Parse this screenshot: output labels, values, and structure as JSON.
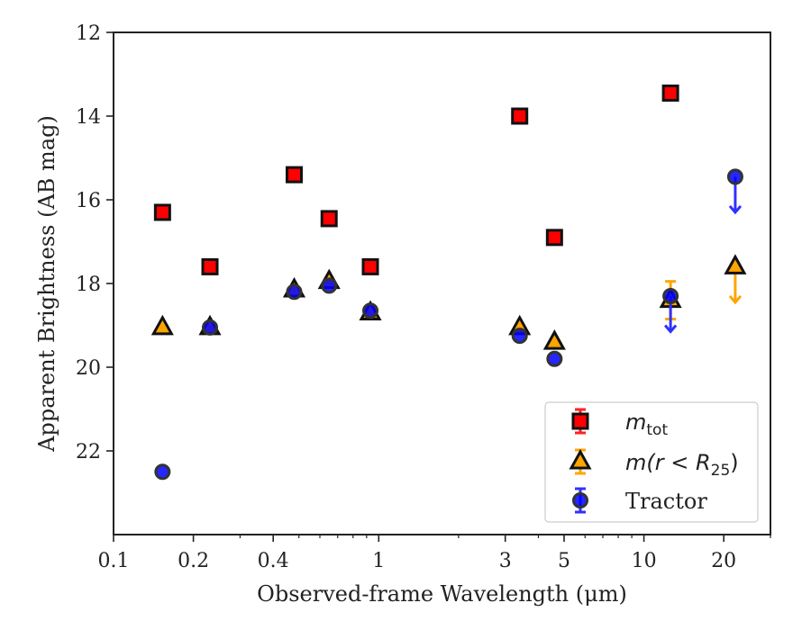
{
  "chart_data": {
    "type": "scatter",
    "xlabel": "Observed-frame Wavelength (μm)",
    "ylabel": "Apparent Brightness (AB mag)",
    "x_scale": "log",
    "xlim": [
      0.1,
      30
    ],
    "ylim": [
      24,
      12
    ],
    "y_inverted": true,
    "x_ticks": [
      0.1,
      0.2,
      0.4,
      1,
      3,
      5,
      10,
      20
    ],
    "x_tick_labels": [
      "0.1",
      "0.2",
      "0.4",
      "1",
      "3",
      "5",
      "10",
      "20"
    ],
    "y_ticks": [
      12,
      14,
      16,
      18,
      20,
      22
    ],
    "y_tick_labels": [
      "12",
      "14",
      "16",
      "18",
      "20",
      "22"
    ],
    "grid": false,
    "legend_position": "bottom-right",
    "series": [
      {
        "name": "m_tot",
        "legend_label": {
          "base": "m",
          "sub": "tot"
        },
        "marker": "square",
        "color": "#ff0000",
        "edge_color": "#111111",
        "points": [
          {
            "x": 0.153,
            "y": 16.3
          },
          {
            "x": 0.231,
            "y": 17.6
          },
          {
            "x": 0.48,
            "y": 15.4
          },
          {
            "x": 0.65,
            "y": 16.45
          },
          {
            "x": 0.93,
            "y": 17.6
          },
          {
            "x": 3.4,
            "y": 14.0
          },
          {
            "x": 4.6,
            "y": 16.9
          },
          {
            "x": 12.6,
            "y": 13.45
          }
        ]
      },
      {
        "name": "m(r < R25)",
        "legend_label": {
          "base": "m(r < R",
          "sub": "25",
          "tail": ")"
        },
        "marker": "triangle",
        "color": "#ffa500",
        "edge_color": "#111111",
        "points": [
          {
            "x": 0.153,
            "y": 19.05
          },
          {
            "x": 0.231,
            "y": 19.05
          },
          {
            "x": 0.48,
            "y": 18.15
          },
          {
            "x": 0.65,
            "y": 17.95
          },
          {
            "x": 0.93,
            "y": 18.7
          },
          {
            "x": 3.4,
            "y": 19.05
          },
          {
            "x": 4.6,
            "y": 19.4
          },
          {
            "x": 12.6,
            "y": 18.4,
            "err_low": 0.45,
            "err_high": 0.45
          },
          {
            "x": 22.1,
            "y": 17.6,
            "upper_limit": true
          }
        ]
      },
      {
        "name": "Tractor",
        "legend_label": {
          "base": "Tractor"
        },
        "marker": "circle",
        "color": "#0000ff",
        "edge_color": "#333333",
        "points": [
          {
            "x": 0.153,
            "y": 22.5
          },
          {
            "x": 0.231,
            "y": 19.05
          },
          {
            "x": 0.48,
            "y": 18.2
          },
          {
            "x": 0.65,
            "y": 18.05
          },
          {
            "x": 0.93,
            "y": 18.65
          },
          {
            "x": 3.4,
            "y": 19.25
          },
          {
            "x": 4.6,
            "y": 19.8
          },
          {
            "x": 12.6,
            "y": 18.3,
            "upper_limit": true
          },
          {
            "x": 22.1,
            "y": 15.45,
            "upper_limit": true
          }
        ]
      }
    ]
  }
}
